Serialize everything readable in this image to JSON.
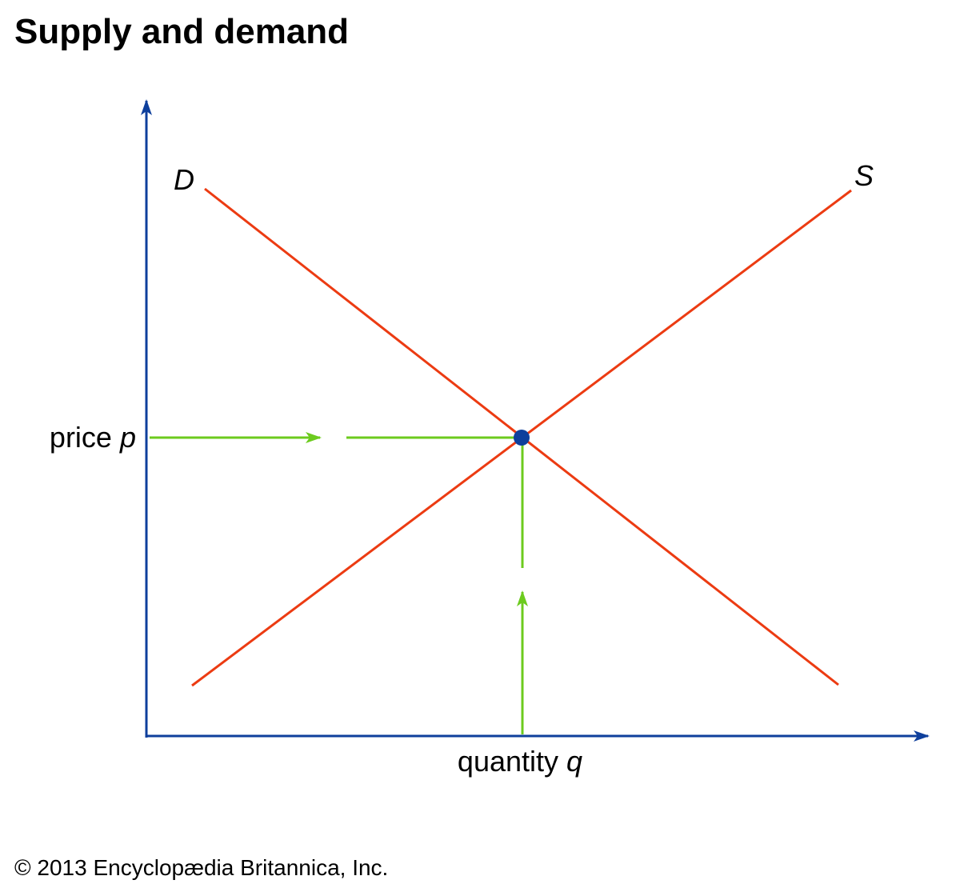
{
  "title": "Supply and demand",
  "curves": [
    {
      "label": "D"
    },
    {
      "label": "S"
    }
  ],
  "y_axis": {
    "label": "price",
    "variable": "p"
  },
  "x_axis": {
    "label": "quantity",
    "variable": "q"
  },
  "footer": "© 2013 Encyclopædia Britannica, Inc."
}
